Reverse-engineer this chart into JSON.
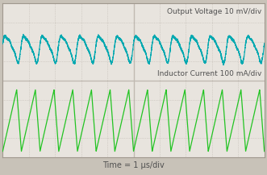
{
  "background_color": "#c8c2b8",
  "plot_bg_color": "#e8e4de",
  "grid_color": "#c0bab2",
  "teal_color": "#00a8b0",
  "green_color": "#22c422",
  "title_bottom": "Time = 1 μs/div",
  "label_voltage": "Output Voltage 10 mV/div",
  "label_current": "Inductor Current 100 mA/div",
  "label_fontsize": 6.5,
  "title_fontsize": 7.0,
  "num_cycles_voltage": 14,
  "num_cycles_current": 14,
  "grid_cols": 10,
  "grid_rows": 8,
  "border_color": "#a0988e",
  "label_color": "#505050"
}
